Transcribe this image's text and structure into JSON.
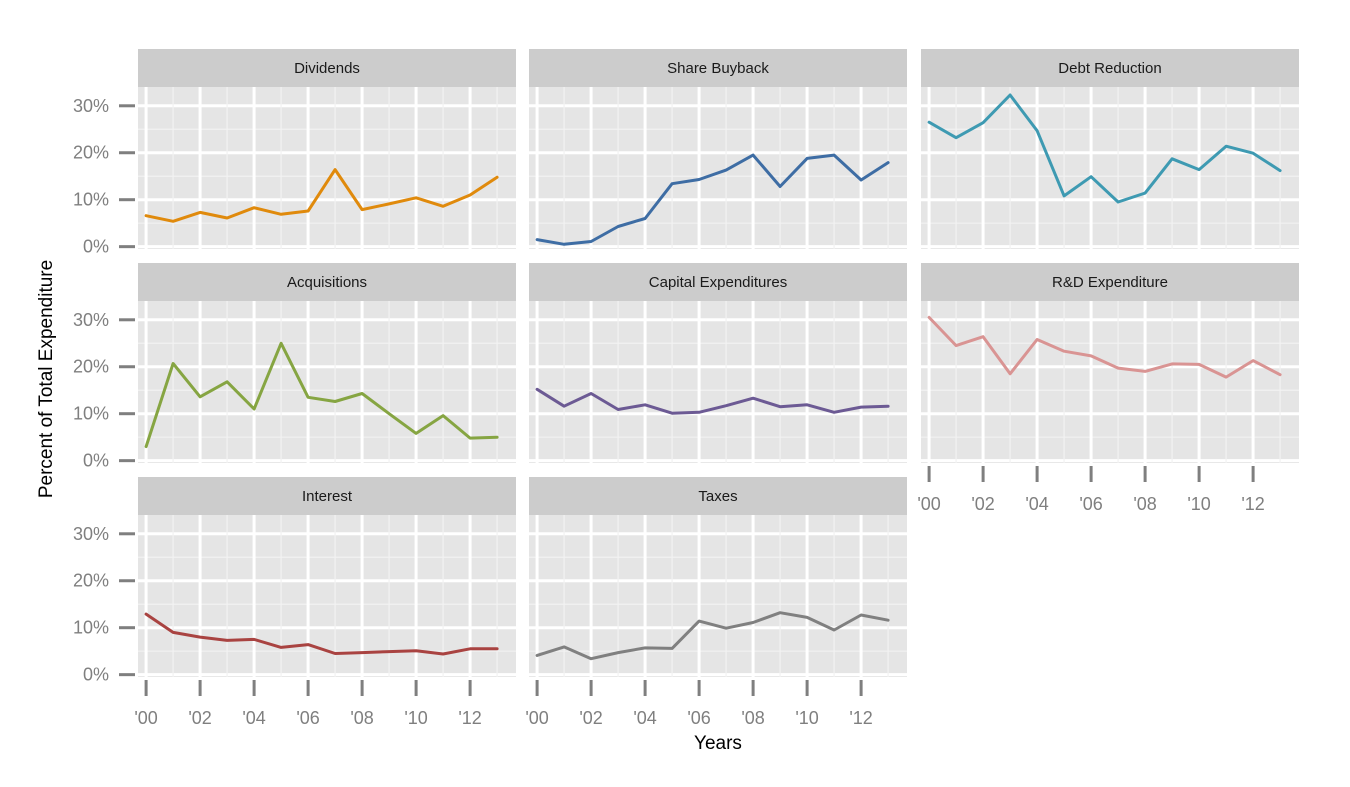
{
  "chart_data": {
    "type": "line",
    "xlabel": "Years",
    "ylabel": "Percent of Total Expenditure",
    "x": [
      2000,
      2001,
      2002,
      2003,
      2004,
      2005,
      2006,
      2007,
      2008,
      2009,
      2010,
      2011,
      2012,
      2013
    ],
    "x_ticks": [
      2000,
      2002,
      2004,
      2006,
      2008,
      2010,
      2012
    ],
    "x_tick_labels": [
      "'00",
      "'02",
      "'04",
      "'06",
      "'08",
      "'10",
      "'12"
    ],
    "xlim": [
      1999.7,
      2013.7
    ],
    "y_ticks": [
      0,
      10,
      20,
      30
    ],
    "y_tick_labels": [
      "0%",
      "10%",
      "20%",
      "30%"
    ],
    "ylim": [
      -0.5,
      34
    ],
    "grid": true,
    "panels": [
      {
        "name": "Dividends",
        "color": "#E08A0C",
        "values": [
          6.6,
          5.4,
          7.3,
          6.1,
          8.3,
          6.9,
          7.6,
          16.4,
          7.9,
          9.1,
          10.4,
          8.6,
          11.0,
          14.8
        ]
      },
      {
        "name": "Share Buyback",
        "color": "#3E6DA4",
        "values": [
          1.5,
          0.5,
          1.1,
          4.3,
          6.0,
          13.4,
          14.3,
          16.3,
          19.5,
          12.8,
          18.8,
          19.5,
          14.2,
          17.9
        ]
      },
      {
        "name": "Debt Reduction",
        "color": "#3E9AB2",
        "values": [
          26.5,
          23.2,
          26.4,
          32.3,
          24.7,
          10.8,
          14.9,
          9.5,
          11.4,
          18.7,
          16.4,
          21.4,
          19.9,
          16.2
        ]
      },
      {
        "name": "Acquisitions",
        "color": "#86A542",
        "values": [
          3.0,
          20.7,
          13.6,
          16.8,
          11.0,
          25.0,
          13.5,
          12.6,
          14.3,
          10.0,
          5.8,
          9.6,
          4.8,
          5.0
        ]
      },
      {
        "name": "Capital Expenditures",
        "color": "#6C5A94",
        "values": [
          15.2,
          11.6,
          14.3,
          10.9,
          11.9,
          10.1,
          10.3,
          11.7,
          13.3,
          11.5,
          11.9,
          10.3,
          11.4,
          11.6
        ]
      },
      {
        "name": "R&D Expenditure",
        "color": "#D99493",
        "values": [
          30.5,
          24.5,
          26.4,
          18.5,
          25.8,
          23.3,
          22.3,
          19.7,
          19.0,
          20.6,
          20.5,
          17.8,
          21.3,
          18.3
        ]
      },
      {
        "name": "Interest",
        "color": "#A94341",
        "values": [
          12.9,
          9.0,
          8.0,
          7.3,
          7.5,
          5.8,
          6.4,
          4.5,
          4.7,
          4.9,
          5.1,
          4.4,
          5.5,
          5.5
        ]
      },
      {
        "name": "Taxes",
        "color": "#808080",
        "values": [
          4.1,
          5.9,
          3.4,
          4.7,
          5.7,
          5.6,
          11.4,
          9.9,
          11.1,
          13.2,
          12.2,
          9.5,
          12.7,
          11.6
        ]
      }
    ]
  }
}
